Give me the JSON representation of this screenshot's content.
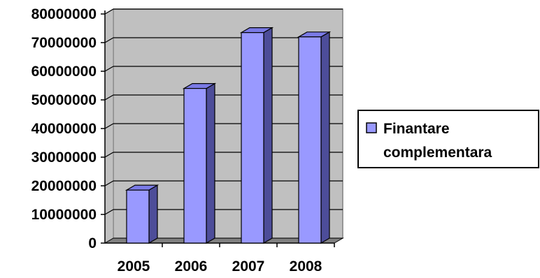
{
  "chart_data": {
    "type": "bar",
    "style": "3d-column",
    "categories": [
      "2005",
      "2006",
      "2007",
      "2008"
    ],
    "series": [
      {
        "name": "Finantare complementara",
        "values": [
          18500000,
          54000000,
          73500000,
          72000000
        ]
      }
    ],
    "ylim": [
      0,
      80000000
    ],
    "yticks": [
      0,
      10000000,
      20000000,
      30000000,
      40000000,
      50000000,
      60000000,
      70000000,
      80000000
    ],
    "ytick_labels": [
      "0",
      "10000000",
      "20000000",
      "30000000",
      "40000000",
      "50000000",
      "60000000",
      "70000000",
      "80000000"
    ],
    "grid": true,
    "legend_position": "right",
    "legend_lines": [
      "Finantare",
      "complementara"
    ],
    "title": "",
    "xlabel": "",
    "ylabel": ""
  },
  "colors": {
    "bar_front": "#9999ff",
    "bar_top": "#7a7ae6",
    "bar_side": "#4d4d99",
    "plot_back": "#c0c0c0",
    "floor": "#808080",
    "grid": "#000000"
  }
}
